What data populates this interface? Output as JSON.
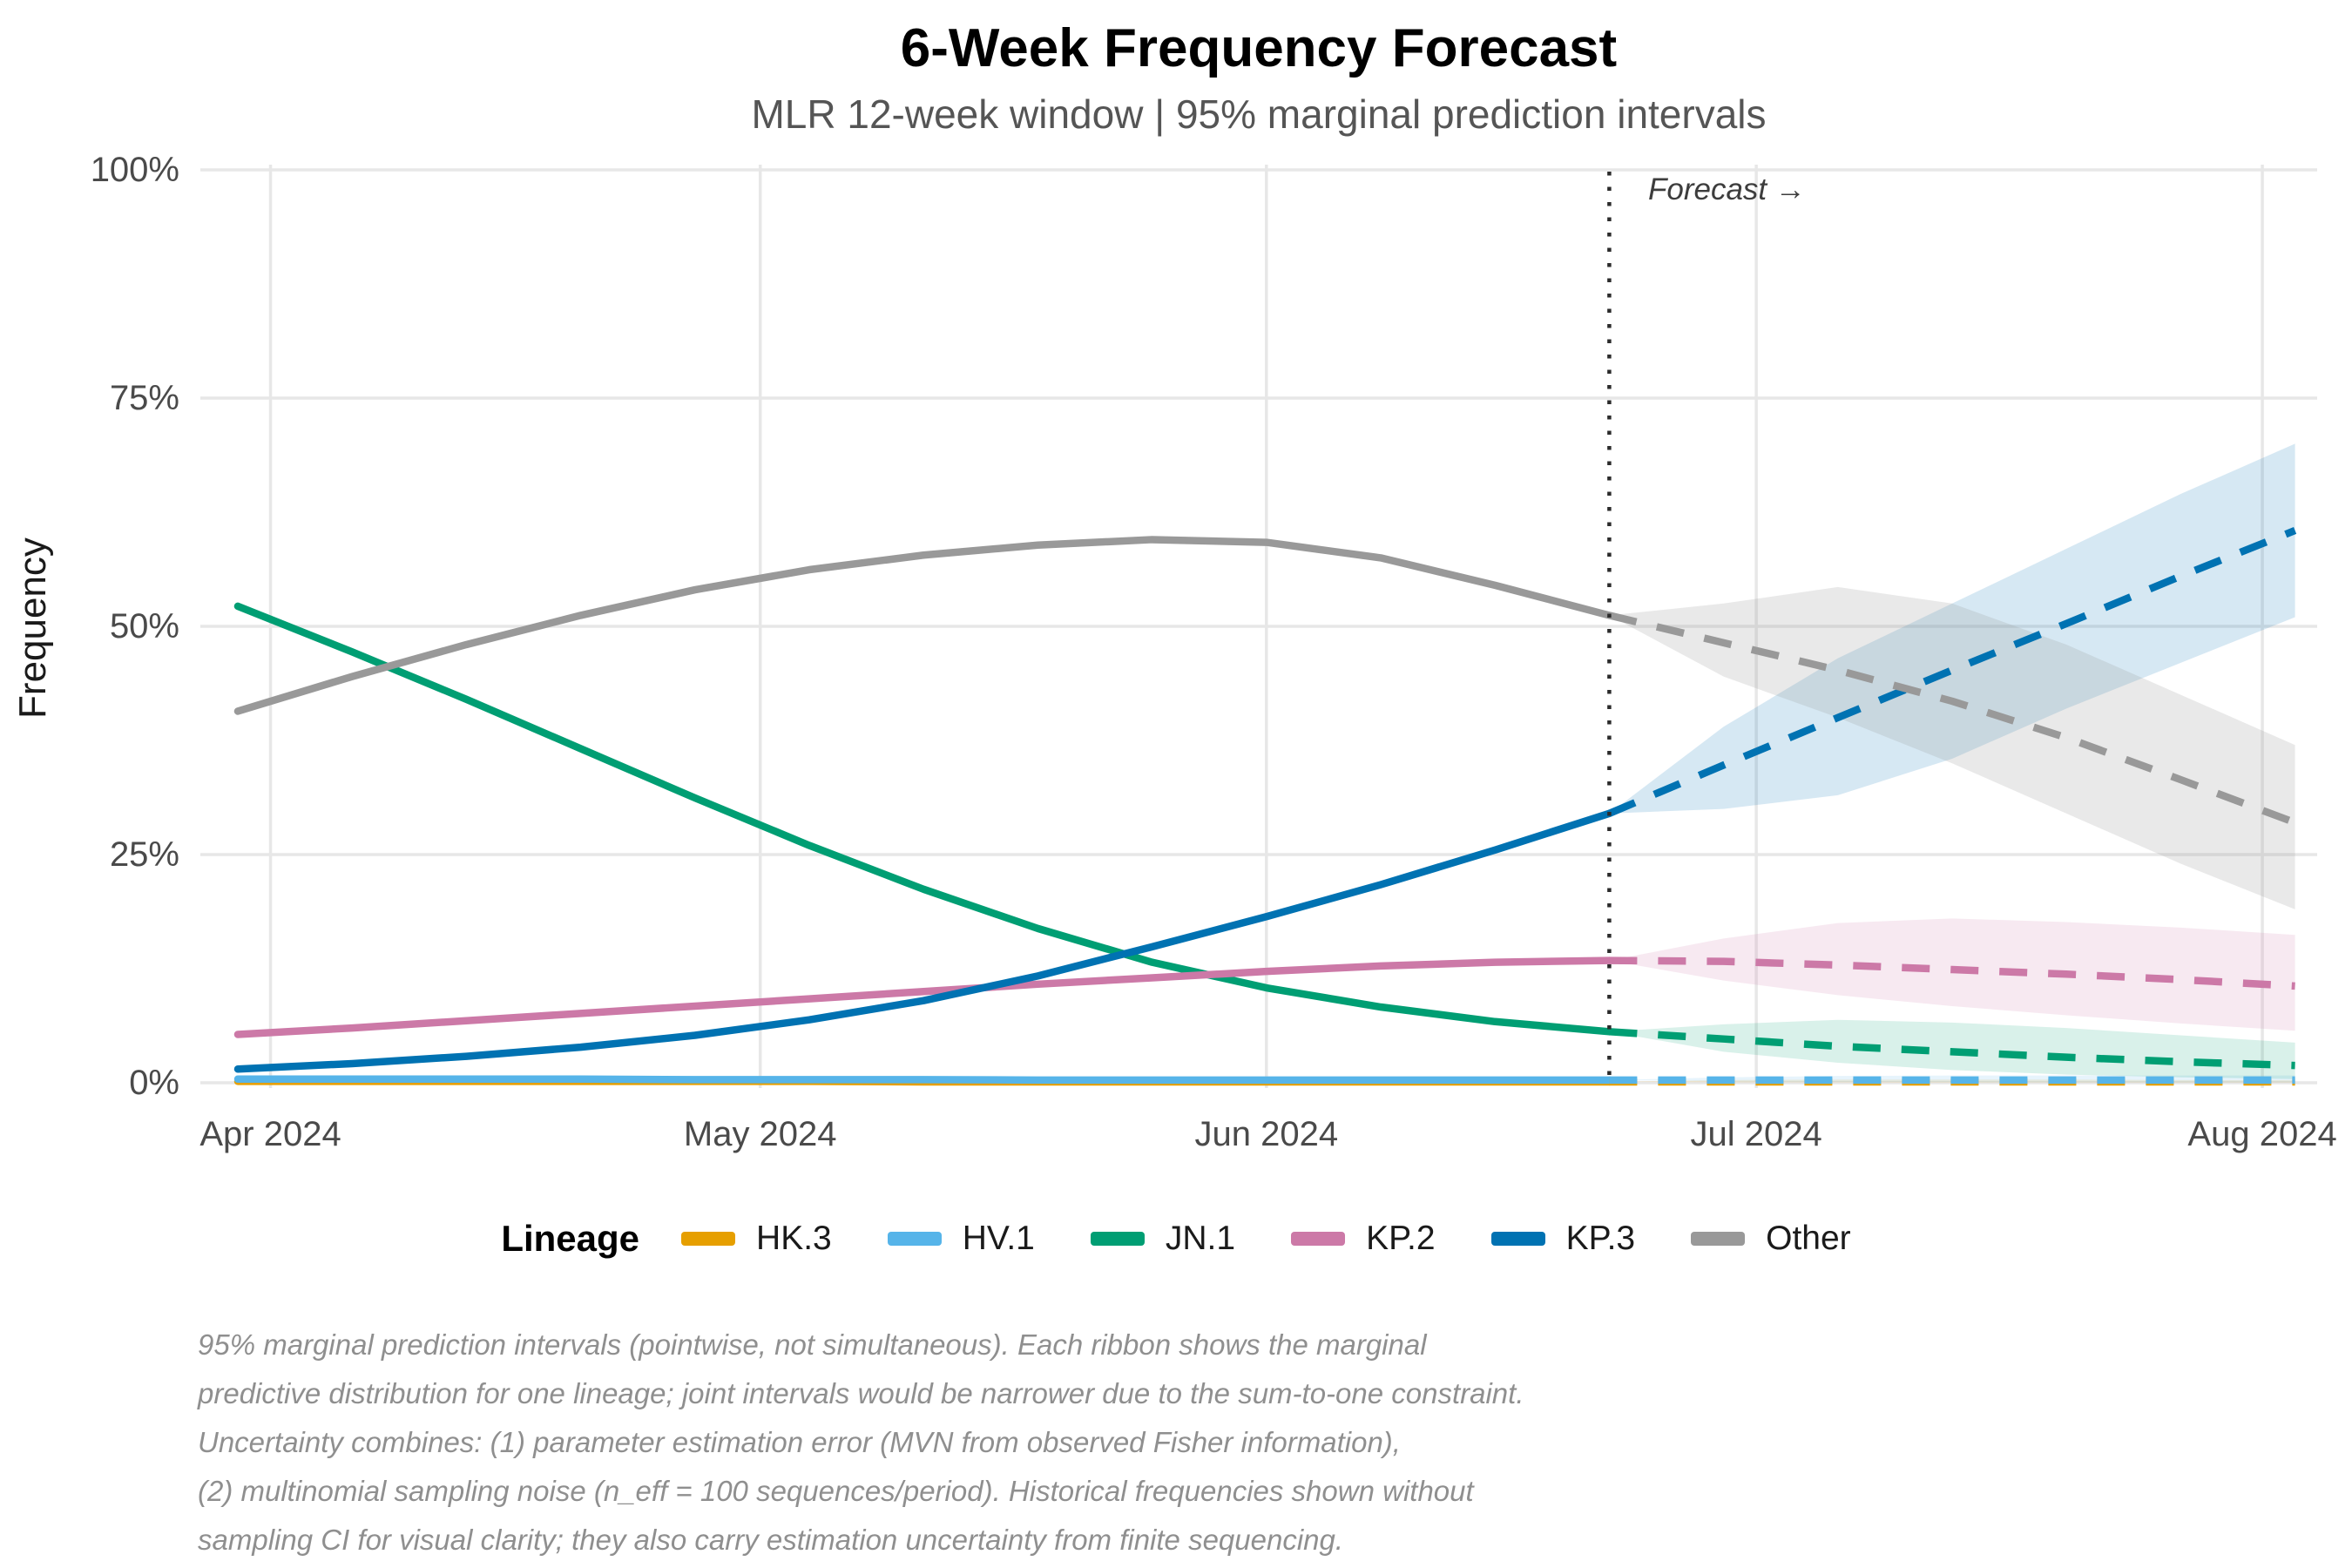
{
  "header": {
    "title": "6-Week Frequency Forecast",
    "subtitle": "MLR 12-week window | 95% marginal prediction intervals"
  },
  "annotation": {
    "forecast_label": "Forecast →"
  },
  "axes": {
    "y_title": "Frequency"
  },
  "legend": {
    "title": "Lineage"
  },
  "caption_lines": [
    "95% marginal prediction intervals (pointwise, not simultaneous). Each ribbon shows the marginal",
    "predictive distribution for one lineage; joint intervals would be narrower due to the sum-to-one constraint.",
    "Uncertainty combines: (1) parameter estimation error (MVN from observed Fisher information),",
    "(2) multinomial sampling noise (n_eff = 100 sequences/period). Historical frequencies shown without",
    "sampling CI for visual clarity; they also carry estimation uncertainty from finite sequencing."
  ],
  "chart_data": {
    "type": "line",
    "title": "6-Week Frequency Forecast",
    "xlabel": "",
    "ylabel": "Frequency",
    "ylim": [
      0,
      100
    ],
    "grid": true,
    "legend_position": "bottom",
    "x_unit": "weeks (weekly points, 12-week history then 6-week forecast)",
    "n_history_points": 13,
    "n_forecast_points": 6,
    "forecast_boundary_week": 12,
    "y_ticks": [
      {
        "label": "0%",
        "pct": 0
      },
      {
        "label": "25%",
        "pct": 25
      },
      {
        "label": "50%",
        "pct": 50
      },
      {
        "label": "75%",
        "pct": 75
      },
      {
        "label": "100%",
        "pct": 100
      }
    ],
    "x_ticks": [
      {
        "label": "Apr 2024",
        "week": 0.286
      },
      {
        "label": "May 2024",
        "week": 4.571
      },
      {
        "label": "Jun 2024",
        "week": 9.0
      },
      {
        "label": "Jul 2024",
        "week": 13.286
      },
      {
        "label": "Aug 2024",
        "week": 17.714
      }
    ],
    "series": [
      {
        "name": "HK.3",
        "color": "#E69F00",
        "ribbon_opacity": 0.14,
        "historical": [
          0.15,
          0.15,
          0.15,
          0.15,
          0.15,
          0.15,
          0.1,
          0.1,
          0.1,
          0.1,
          0.1,
          0.1,
          0.1
        ],
        "forecast_mean": [
          0.1,
          0.1,
          0.1,
          0.1,
          0.1,
          0.1,
          0.1
        ],
        "forecast_lower": [
          0.1,
          0.05,
          0.03,
          0.02,
          0.02,
          0.01,
          0.01
        ],
        "forecast_upper": [
          0.1,
          0.3,
          0.35,
          0.35,
          0.35,
          0.3,
          0.3
        ]
      },
      {
        "name": "HV.1",
        "color": "#56B4E9",
        "ribbon_opacity": 0.14,
        "historical": [
          0.4,
          0.4,
          0.4,
          0.4,
          0.35,
          0.35,
          0.35,
          0.3,
          0.3,
          0.3,
          0.3,
          0.3,
          0.3
        ],
        "forecast_mean": [
          0.3,
          0.3,
          0.3,
          0.3,
          0.3,
          0.3,
          0.3
        ],
        "forecast_lower": [
          0.3,
          0.15,
          0.1,
          0.08,
          0.06,
          0.05,
          0.05
        ],
        "forecast_upper": [
          0.3,
          0.6,
          0.75,
          0.8,
          0.8,
          0.8,
          0.8
        ]
      },
      {
        "name": "JN.1",
        "color": "#009E73",
        "ribbon_opacity": 0.15,
        "historical": [
          52.2,
          47.2,
          42.0,
          36.6,
          31.2,
          26.0,
          21.2,
          16.9,
          13.2,
          10.4,
          8.3,
          6.7,
          5.6
        ],
        "forecast_mean": [
          5.6,
          4.8,
          4.0,
          3.4,
          2.8,
          2.3,
          1.9
        ],
        "forecast_lower": [
          5.6,
          3.4,
          2.2,
          1.4,
          0.9,
          0.6,
          0.4
        ],
        "forecast_upper": [
          5.6,
          6.4,
          6.9,
          6.6,
          6.0,
          5.2,
          4.4
        ]
      },
      {
        "name": "KP.2",
        "color": "#CC79A7",
        "ribbon_opacity": 0.16,
        "historical": [
          5.3,
          6.0,
          6.8,
          7.6,
          8.4,
          9.2,
          10.0,
          10.8,
          11.5,
          12.2,
          12.8,
          13.2,
          13.4
        ],
        "forecast_mean": [
          13.4,
          13.3,
          12.9,
          12.4,
          11.9,
          11.3,
          10.6
        ],
        "forecast_lower": [
          13.4,
          11.2,
          9.6,
          8.4,
          7.4,
          6.5,
          5.7
        ],
        "forecast_upper": [
          13.4,
          15.8,
          17.5,
          18.0,
          17.6,
          17.0,
          16.2
        ]
      },
      {
        "name": "KP.3",
        "color": "#0072B2",
        "ribbon_opacity": 0.16,
        "historical": [
          1.5,
          2.1,
          2.9,
          3.9,
          5.2,
          6.9,
          9.0,
          11.7,
          14.9,
          18.2,
          21.7,
          25.5,
          29.5
        ],
        "forecast_mean": [
          29.5,
          34.8,
          40.0,
          45.2,
          50.3,
          55.5,
          60.5
        ],
        "forecast_lower": [
          29.5,
          30.0,
          31.5,
          35.5,
          41.0,
          46.0,
          51.0
        ],
        "forecast_upper": [
          29.5,
          39.0,
          46.5,
          52.5,
          58.5,
          64.5,
          70.0
        ]
      },
      {
        "name": "Other",
        "color": "#999999",
        "ribbon_opacity": 0.21,
        "historical": [
          40.7,
          44.5,
          48.0,
          51.2,
          54.0,
          56.2,
          57.8,
          58.9,
          59.5,
          59.2,
          57.5,
          54.5,
          51.2
        ],
        "forecast_mean": [
          51.2,
          48.2,
          45.2,
          41.8,
          37.8,
          33.2,
          28.5
        ],
        "forecast_lower": [
          51.2,
          44.5,
          40.0,
          35.0,
          29.5,
          24.0,
          19.0
        ],
        "forecast_upper": [
          51.2,
          52.5,
          54.3,
          52.5,
          48.0,
          42.5,
          37.0
        ]
      }
    ]
  }
}
